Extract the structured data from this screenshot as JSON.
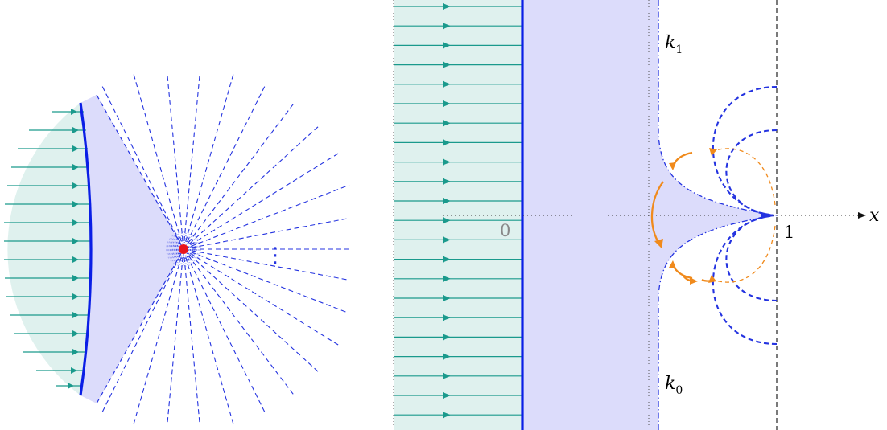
{
  "labels": {
    "k1": "k",
    "k1_sub": "1",
    "k0": "k",
    "k0_sub": "0",
    "origin": "0",
    "one": "1",
    "x_axis": "x",
    "ellipsis": "⋮"
  },
  "colors": {
    "flow_fill": "#dff1ee",
    "flow_lines": "#1a9a8c",
    "region_fill": "#dcdcfb",
    "boundary_blue": "#0a1ee6",
    "dashed_blue": "#2433e0",
    "orange": "#f08a1c",
    "red_point": "#e8141e",
    "axis_dots": "#555555"
  }
}
